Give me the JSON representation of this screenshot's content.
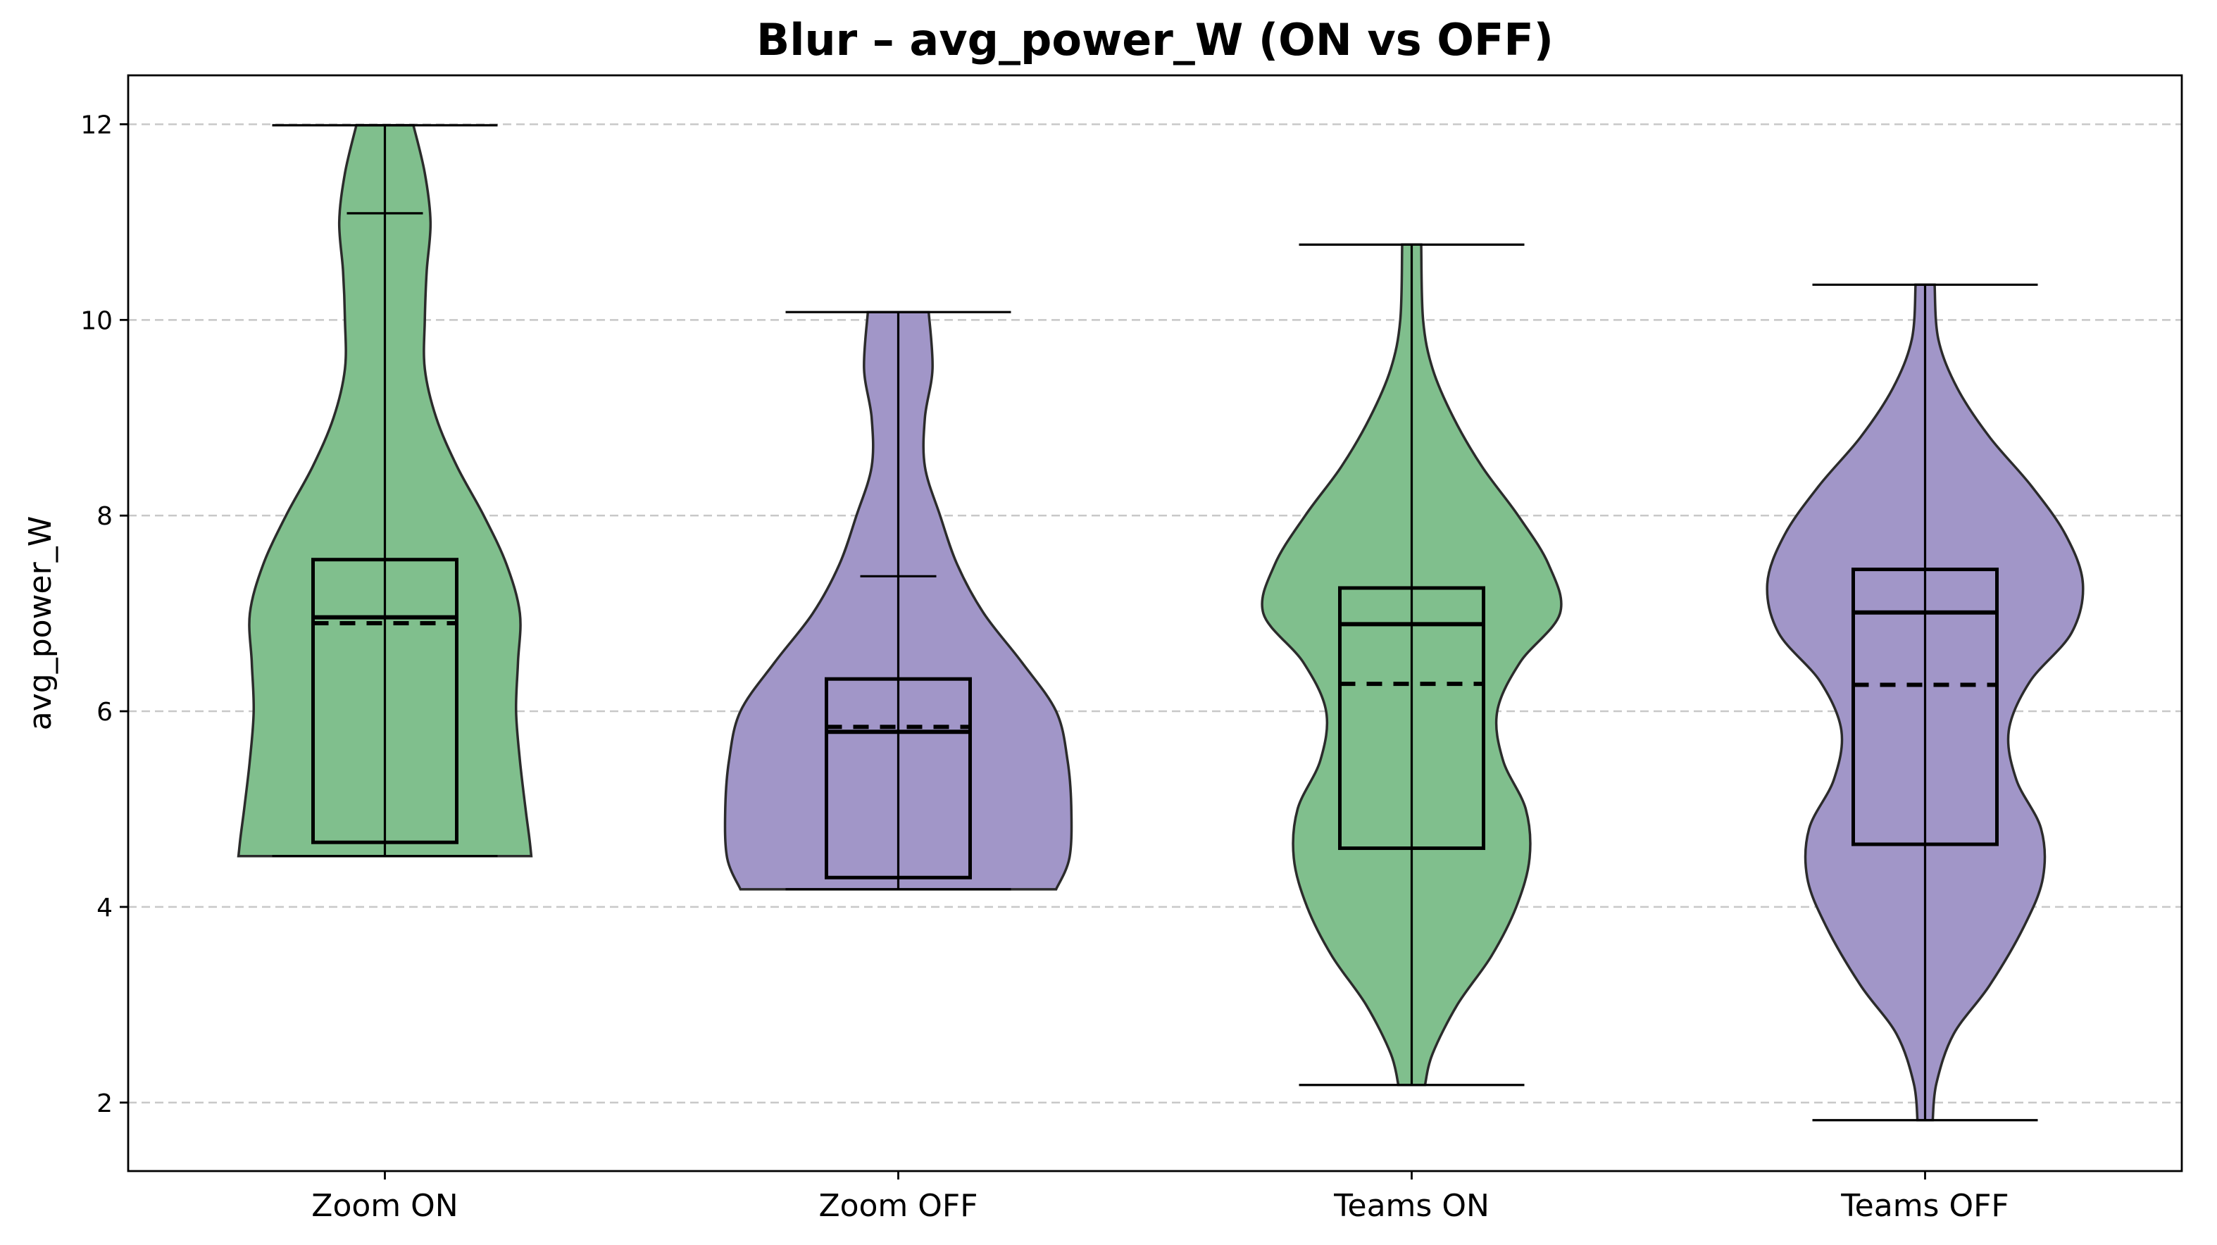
{
  "chart_data": {
    "type": "violin",
    "title": "Blur – avg_power_W (ON vs OFF)",
    "xlabel": "",
    "ylabel": "avg_power_W",
    "ylim": [
      1.3,
      12.5
    ],
    "yticks": [
      2,
      4,
      6,
      8,
      10,
      12
    ],
    "grid": "y-dashed",
    "colors": {
      "ON": "#80bf8d",
      "OFF": "#a196c8"
    },
    "categories": [
      "Zoom ON",
      "Zoom OFF",
      "Teams ON",
      "Teams OFF"
    ],
    "groups": [
      {
        "label": "Zoom ON",
        "color": "#80bf8d",
        "min": 4.52,
        "max": 11.99,
        "q1": 4.66,
        "median": 6.96,
        "q3": 7.55,
        "mean": 6.9,
        "extra_line": 11.09,
        "density": [
          [
            4.52,
            0.77
          ],
          [
            4.7,
            0.76
          ],
          [
            5.0,
            0.74
          ],
          [
            5.5,
            0.71
          ],
          [
            6.0,
            0.69
          ],
          [
            6.5,
            0.7
          ],
          [
            7.0,
            0.71
          ],
          [
            7.5,
            0.64
          ],
          [
            8.0,
            0.52
          ],
          [
            8.5,
            0.38
          ],
          [
            9.0,
            0.27
          ],
          [
            9.5,
            0.21
          ],
          [
            10.0,
            0.21
          ],
          [
            10.5,
            0.22
          ],
          [
            11.0,
            0.24
          ],
          [
            11.5,
            0.21
          ],
          [
            11.99,
            0.15
          ]
        ]
      },
      {
        "label": "Zoom OFF",
        "color": "#a196c8",
        "min": 4.18,
        "max": 10.08,
        "q1": 4.3,
        "median": 5.79,
        "q3": 6.33,
        "mean": 5.84,
        "extra_line": 7.38,
        "density": [
          [
            4.18,
            0.83
          ],
          [
            4.5,
            0.9
          ],
          [
            5.0,
            0.91
          ],
          [
            5.5,
            0.89
          ],
          [
            6.0,
            0.83
          ],
          [
            6.5,
            0.65
          ],
          [
            7.0,
            0.45
          ],
          [
            7.5,
            0.31
          ],
          [
            8.0,
            0.22
          ],
          [
            8.5,
            0.14
          ],
          [
            9.0,
            0.14
          ],
          [
            9.5,
            0.18
          ],
          [
            10.08,
            0.16
          ]
        ]
      },
      {
        "label": "Teams ON",
        "color": "#80bf8d",
        "min": 2.18,
        "max": 10.77,
        "q1": 4.6,
        "median": 6.89,
        "q3": 7.26,
        "mean": 6.28,
        "density": [
          [
            2.18,
            0.07
          ],
          [
            2.5,
            0.11
          ],
          [
            3.0,
            0.24
          ],
          [
            3.5,
            0.42
          ],
          [
            4.0,
            0.55
          ],
          [
            4.5,
            0.62
          ],
          [
            5.0,
            0.6
          ],
          [
            5.5,
            0.48
          ],
          [
            6.0,
            0.45
          ],
          [
            6.5,
            0.57
          ],
          [
            7.0,
            0.78
          ],
          [
            7.5,
            0.72
          ],
          [
            8.0,
            0.56
          ],
          [
            8.5,
            0.37
          ],
          [
            9.0,
            0.22
          ],
          [
            9.5,
            0.11
          ],
          [
            10.0,
            0.06
          ],
          [
            10.77,
            0.05
          ]
        ]
      },
      {
        "label": "Teams OFF",
        "color": "#a196c8",
        "min": 1.82,
        "max": 10.36,
        "q1": 4.64,
        "median": 7.01,
        "q3": 7.45,
        "mean": 6.27,
        "density": [
          [
            1.82,
            0.04
          ],
          [
            2.2,
            0.06
          ],
          [
            2.7,
            0.15
          ],
          [
            3.2,
            0.34
          ],
          [
            3.8,
            0.52
          ],
          [
            4.3,
            0.62
          ],
          [
            4.8,
            0.61
          ],
          [
            5.3,
            0.48
          ],
          [
            5.8,
            0.44
          ],
          [
            6.3,
            0.55
          ],
          [
            6.8,
            0.77
          ],
          [
            7.3,
            0.83
          ],
          [
            7.8,
            0.74
          ],
          [
            8.3,
            0.56
          ],
          [
            8.8,
            0.34
          ],
          [
            9.3,
            0.17
          ],
          [
            9.8,
            0.07
          ],
          [
            10.36,
            0.05
          ]
        ]
      }
    ]
  }
}
